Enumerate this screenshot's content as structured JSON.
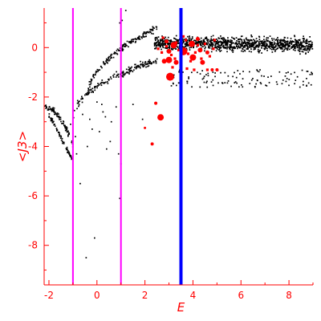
{
  "chart_data": {
    "type": "scatter",
    "xlabel": "E",
    "ylabel": "<J3>",
    "xlim": [
      -2.2,
      9.0
    ],
    "ylim": [
      -9.6,
      1.6
    ],
    "x_ticks": [
      -2,
      0,
      2,
      4,
      6,
      8
    ],
    "y_ticks": [
      0,
      -2,
      -4,
      -6,
      -8
    ],
    "grid": false,
    "colors": {
      "axis": "#ff0000",
      "dots": "#000000",
      "markers": "#ff0000",
      "magenta": "#ff00ff",
      "blue": "#0000ff"
    },
    "vertical_lines": [
      {
        "x": -1.0,
        "color": "#ff00ff"
      },
      {
        "x": 1.0,
        "color": "#ff00ff"
      },
      {
        "x": 3.5,
        "color": "#0000ff"
      }
    ],
    "large_markers": [
      {
        "x": 3.05,
        "y": -1.18,
        "r": 5
      },
      {
        "x": 2.65,
        "y": -2.82,
        "r": 4
      },
      {
        "x": 2.45,
        "y": -2.25,
        "r": 2
      },
      {
        "x": 2.3,
        "y": -3.9,
        "r": 2
      },
      {
        "x": 2.0,
        "y": -3.25,
        "r": 1.5
      },
      {
        "x": 3.0,
        "y": -0.5,
        "r": 4
      },
      {
        "x": 2.8,
        "y": -0.55,
        "r": 3
      },
      {
        "x": 3.2,
        "y": 0.1,
        "r": 4
      },
      {
        "x": 3.6,
        "y": -0.15,
        "r": 5
      },
      {
        "x": 4.0,
        "y": -0.4,
        "r": 4
      },
      {
        "x": 4.4,
        "y": -0.6,
        "r": 3
      },
      {
        "x": 3.95,
        "y": 0.15,
        "r": 4
      },
      {
        "x": 4.8,
        "y": -0.9,
        "r": 2
      },
      {
        "x": 3.0,
        "y": -0.15,
        "r": 3
      },
      {
        "x": 4.3,
        "y": -0.1,
        "r": 3
      },
      {
        "x": 2.9,
        "y": 0.25,
        "r": 2.5
      },
      {
        "x": 4.2,
        "y": 0.35,
        "r": 2.5
      },
      {
        "x": 3.3,
        "y": -0.6,
        "r": 3
      },
      {
        "x": 4.6,
        "y": -0.2,
        "r": 2.5
      },
      {
        "x": 5.0,
        "y": -0.9,
        "r": 2
      }
    ],
    "small_markers": [
      {
        "x": 2.9,
        "y": 0.05
      },
      {
        "x": 3.1,
        "y": -0.3
      },
      {
        "x": 3.3,
        "y": 0.2
      },
      {
        "x": 3.4,
        "y": -0.1
      },
      {
        "x": 3.7,
        "y": 0.3
      },
      {
        "x": 3.8,
        "y": -0.25
      },
      {
        "x": 3.9,
        "y": -0.55
      },
      {
        "x": 4.1,
        "y": -0.2
      },
      {
        "x": 4.2,
        "y": 0.1
      },
      {
        "x": 4.35,
        "y": -0.45
      },
      {
        "x": 4.5,
        "y": 0.15
      },
      {
        "x": 4.7,
        "y": -0.35
      },
      {
        "x": 3.15,
        "y": -0.8
      },
      {
        "x": 3.5,
        "y": -0.7
      },
      {
        "x": 2.75,
        "y": 0.4
      },
      {
        "x": 3.6,
        "y": 0.45
      },
      {
        "x": 4.85,
        "y": -0.05
      },
      {
        "x": 2.7,
        "y": -0.2
      },
      {
        "x": 3.75,
        "y": -0.85
      },
      {
        "x": 4.05,
        "y": -0.9
      },
      {
        "x": 4.6,
        "y": -0.9
      },
      {
        "x": 3.25,
        "y": -0.45
      },
      {
        "x": 2.55,
        "y": -0.05
      },
      {
        "x": 4.9,
        "y": 0.3
      }
    ]
  }
}
